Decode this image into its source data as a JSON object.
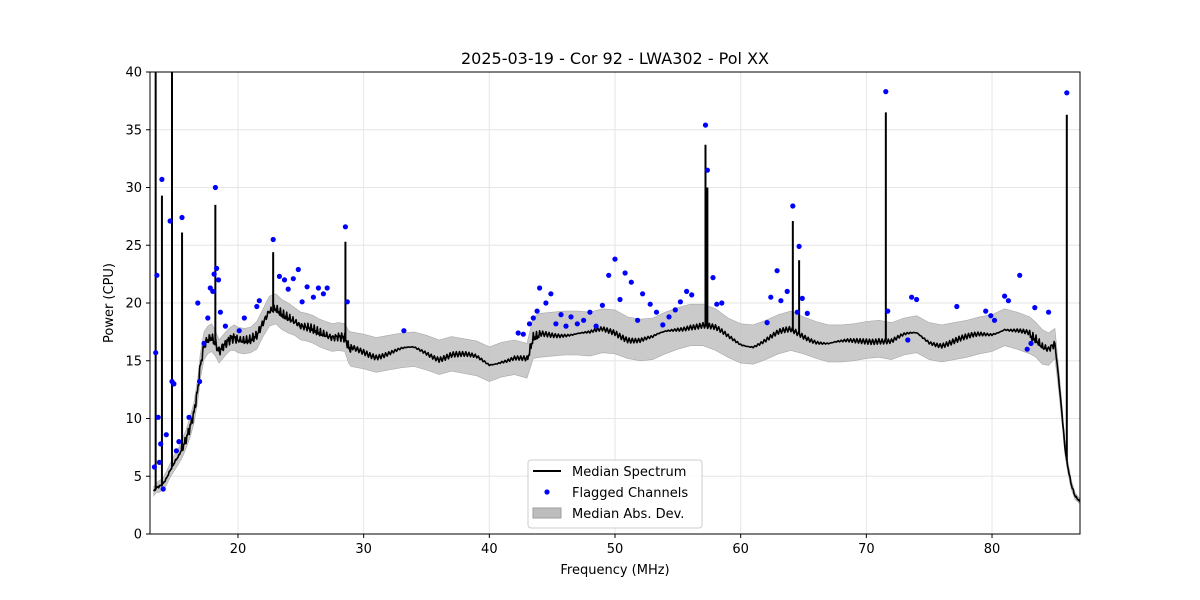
{
  "chart_data": {
    "type": "line",
    "title": "2025-03-19 - Cor 92 - LWA302 - Pol XX",
    "xlabel": "Frequency (MHz)",
    "ylabel": "Power (CPU)",
    "xlim": [
      13,
      87
    ],
    "ylim": [
      0,
      40
    ],
    "x_ticks": [
      20,
      30,
      40,
      50,
      60,
      70,
      80
    ],
    "y_ticks": [
      0,
      5,
      10,
      15,
      20,
      25,
      30,
      35,
      40
    ],
    "grid": true,
    "legend_position": "lower-center",
    "colors": {
      "median": "#000000",
      "flagged": "#0000ff",
      "mad": "#bdbdbd"
    },
    "series": [
      {
        "name": "Median Spectrum",
        "kind": "line",
        "x": [
          13.3,
          13.5,
          13.7,
          14.0,
          14.3,
          14.6,
          15.0,
          15.3,
          15.6,
          15.9,
          16.2,
          16.5,
          16.8,
          17.0,
          17.3,
          17.6,
          17.9,
          18.2,
          18.5,
          18.8,
          19.1,
          19.4,
          19.7,
          20.0,
          20.5,
          21.0,
          21.5,
          22.0,
          22.5,
          23.0,
          23.5,
          24.0,
          24.5,
          25.0,
          25.5,
          26.0,
          26.5,
          27.0,
          27.5,
          28.0,
          28.5,
          28.8,
          29.0,
          30.0,
          31.0,
          32.0,
          33.0,
          34.0,
          35.0,
          36.0,
          37.0,
          38.0,
          39.0,
          40.0,
          41.0,
          42.0,
          43.0,
          43.5,
          44.0,
          45.0,
          46.0,
          47.0,
          48.0,
          49.0,
          50.0,
          51.0,
          52.0,
          53.0,
          54.0,
          55.0,
          56.0,
          57.0,
          58.0,
          59.0,
          60.0,
          61.0,
          62.0,
          63.0,
          64.0,
          65.0,
          66.0,
          67.0,
          68.0,
          69.0,
          70.0,
          71.0,
          72.0,
          73.0,
          74.0,
          75.0,
          76.0,
          77.0,
          78.0,
          79.0,
          80.0,
          81.0,
          82.0,
          83.0,
          83.5,
          84.0,
          84.5,
          85.0,
          85.3,
          85.6,
          85.8,
          86.0,
          86.3,
          86.6,
          87.0
        ],
        "y": [
          3.7,
          4.0,
          4.1,
          4.3,
          4.8,
          5.5,
          6.3,
          6.8,
          7.5,
          8.3,
          9.3,
          10.5,
          12.5,
          14.5,
          16.3,
          16.8,
          17.0,
          16.5,
          15.8,
          16.2,
          16.6,
          16.9,
          17.0,
          16.8,
          16.7,
          16.8,
          17.2,
          18.3,
          19.3,
          19.5,
          19.0,
          18.7,
          18.4,
          18.0,
          17.9,
          17.7,
          17.4,
          17.2,
          17.0,
          17.1,
          17.0,
          16.2,
          16.0,
          15.8,
          15.5,
          15.7,
          15.9,
          16.0,
          15.7,
          15.3,
          15.6,
          15.4,
          15.2,
          14.7,
          15.1,
          15.3,
          15.0,
          17.0,
          17.2,
          17.3,
          17.4,
          17.4,
          17.3,
          17.6,
          17.5,
          17.0,
          16.8,
          16.9,
          17.4,
          17.8,
          18.1,
          18.1,
          17.7,
          17.0,
          16.5,
          16.4,
          16.8,
          17.3,
          17.6,
          17.2,
          16.8,
          16.5,
          16.5,
          16.6,
          16.8,
          16.9,
          16.7,
          17.1,
          17.3,
          16.7,
          16.5,
          16.7,
          16.9,
          17.2,
          17.4,
          17.9,
          17.6,
          17.2,
          16.8,
          16.2,
          16.0,
          16.5,
          13.5,
          10.0,
          7.5,
          6.0,
          4.3,
          3.3,
          2.8
        ]
      },
      {
        "name": "Spikes",
        "kind": "spikes",
        "x": [
          13.45,
          13.95,
          14.75,
          15.55,
          18.2,
          22.8,
          28.55,
          57.2,
          57.35,
          64.15,
          64.65,
          71.55,
          85.95
        ],
        "y": [
          40,
          29.3,
          40,
          26.1,
          28.5,
          24.4,
          25.3,
          33.7,
          30.0,
          27.1,
          23.7,
          36.5,
          36.3
        ]
      },
      {
        "name": "Flagged Channels",
        "kind": "scatter",
        "x": [
          13.35,
          13.45,
          13.55,
          13.65,
          13.75,
          13.85,
          13.95,
          14.05,
          14.3,
          14.6,
          14.75,
          14.9,
          15.1,
          15.3,
          15.55,
          16.1,
          16.8,
          16.95,
          17.3,
          17.6,
          17.8,
          18.0,
          18.1,
          18.2,
          18.3,
          18.45,
          18.6,
          19.0,
          20.1,
          20.5,
          21.5,
          21.7,
          22.8,
          23.3,
          23.7,
          24.0,
          24.4,
          24.8,
          25.1,
          25.5,
          26.0,
          26.4,
          26.8,
          27.1,
          28.55,
          28.7,
          33.2,
          42.3,
          42.7,
          43.2,
          43.5,
          43.8,
          44.0,
          44.5,
          44.9,
          45.3,
          45.7,
          46.1,
          46.5,
          47.0,
          47.5,
          48.0,
          48.5,
          49.0,
          49.5,
          50.0,
          50.4,
          50.8,
          51.3,
          51.8,
          52.2,
          52.8,
          53.3,
          53.8,
          54.3,
          54.8,
          55.2,
          55.7,
          56.1,
          57.2,
          57.35,
          57.8,
          58.1,
          58.5,
          62.1,
          62.4,
          62.9,
          63.2,
          63.7,
          64.15,
          64.5,
          64.65,
          64.9,
          65.3,
          71.55,
          71.7,
          73.3,
          73.6,
          74.0,
          77.2,
          79.5,
          79.9,
          80.2,
          81.0,
          81.3,
          82.2,
          82.8,
          83.1,
          83.4,
          84.5,
          85.95
        ],
        "y": [
          5.8,
          15.7,
          22.4,
          10.1,
          6.2,
          7.8,
          30.7,
          3.9,
          8.6,
          27.1,
          13.2,
          13.0,
          7.2,
          8.0,
          27.4,
          10.1,
          20.0,
          13.2,
          16.5,
          18.7,
          21.3,
          21.0,
          22.5,
          30.0,
          23.0,
          22.0,
          19.2,
          18.0,
          17.6,
          18.7,
          19.7,
          20.2,
          25.5,
          22.3,
          22.0,
          21.2,
          22.1,
          22.9,
          20.1,
          21.4,
          20.5,
          21.3,
          20.8,
          21.3,
          26.6,
          20.1,
          17.6,
          17.4,
          17.3,
          18.2,
          18.7,
          19.3,
          21.3,
          20.0,
          20.8,
          18.2,
          19.0,
          18.0,
          18.8,
          18.2,
          18.5,
          19.2,
          18.0,
          19.8,
          22.4,
          23.8,
          20.3,
          22.6,
          21.8,
          18.5,
          20.8,
          19.9,
          19.2,
          18.1,
          18.8,
          19.4,
          20.1,
          21.0,
          20.7,
          35.4,
          31.5,
          22.2,
          19.9,
          20.0,
          18.3,
          20.5,
          22.8,
          20.2,
          21.0,
          28.4,
          19.2,
          24.9,
          20.4,
          19.1,
          38.3,
          19.3,
          16.8,
          20.5,
          20.3,
          19.7,
          19.3,
          18.9,
          18.5,
          20.6,
          20.2,
          22.4,
          16.0,
          16.5,
          19.6,
          19.2,
          38.2
        ]
      },
      {
        "name": "Median Abs. Dev.",
        "kind": "band",
        "band_width": [
          0.4,
          0.4,
          0.5,
          0.5,
          0.6,
          0.6,
          0.7,
          0.7,
          0.8,
          0.8,
          0.9,
          0.9,
          1.0,
          1.1,
          1.2,
          1.2,
          1.2,
          1.1,
          1.0,
          1.0,
          1.0,
          1.0,
          1.1,
          1.1,
          1.1,
          1.1,
          1.2,
          1.2,
          1.3,
          1.3,
          1.3,
          1.3,
          1.2,
          1.2,
          1.2,
          1.2,
          1.2,
          1.2,
          1.2,
          1.2,
          1.2,
          1.4,
          1.5,
          1.5,
          1.5,
          1.5,
          1.5,
          1.5,
          1.5,
          1.5,
          1.5,
          1.5,
          1.5,
          1.5,
          1.5,
          1.5,
          1.5,
          1.8,
          1.9,
          1.9,
          1.9,
          1.9,
          1.9,
          1.9,
          1.9,
          1.8,
          1.8,
          1.8,
          1.8,
          1.8,
          1.8,
          1.8,
          1.8,
          1.7,
          1.7,
          1.7,
          1.7,
          1.7,
          1.7,
          1.6,
          1.6,
          1.6,
          1.6,
          1.6,
          1.6,
          1.6,
          1.6,
          1.6,
          1.6,
          1.6,
          1.6,
          1.6,
          1.6,
          1.6,
          1.6,
          1.6,
          1.6,
          1.6,
          1.5,
          1.5,
          1.4,
          1.3,
          1.0,
          0.8,
          0.6,
          0.5,
          0.4,
          0.3,
          0.2
        ]
      }
    ],
    "legend": [
      "Median Spectrum",
      "Flagged Channels",
      "Median Abs. Dev."
    ]
  }
}
